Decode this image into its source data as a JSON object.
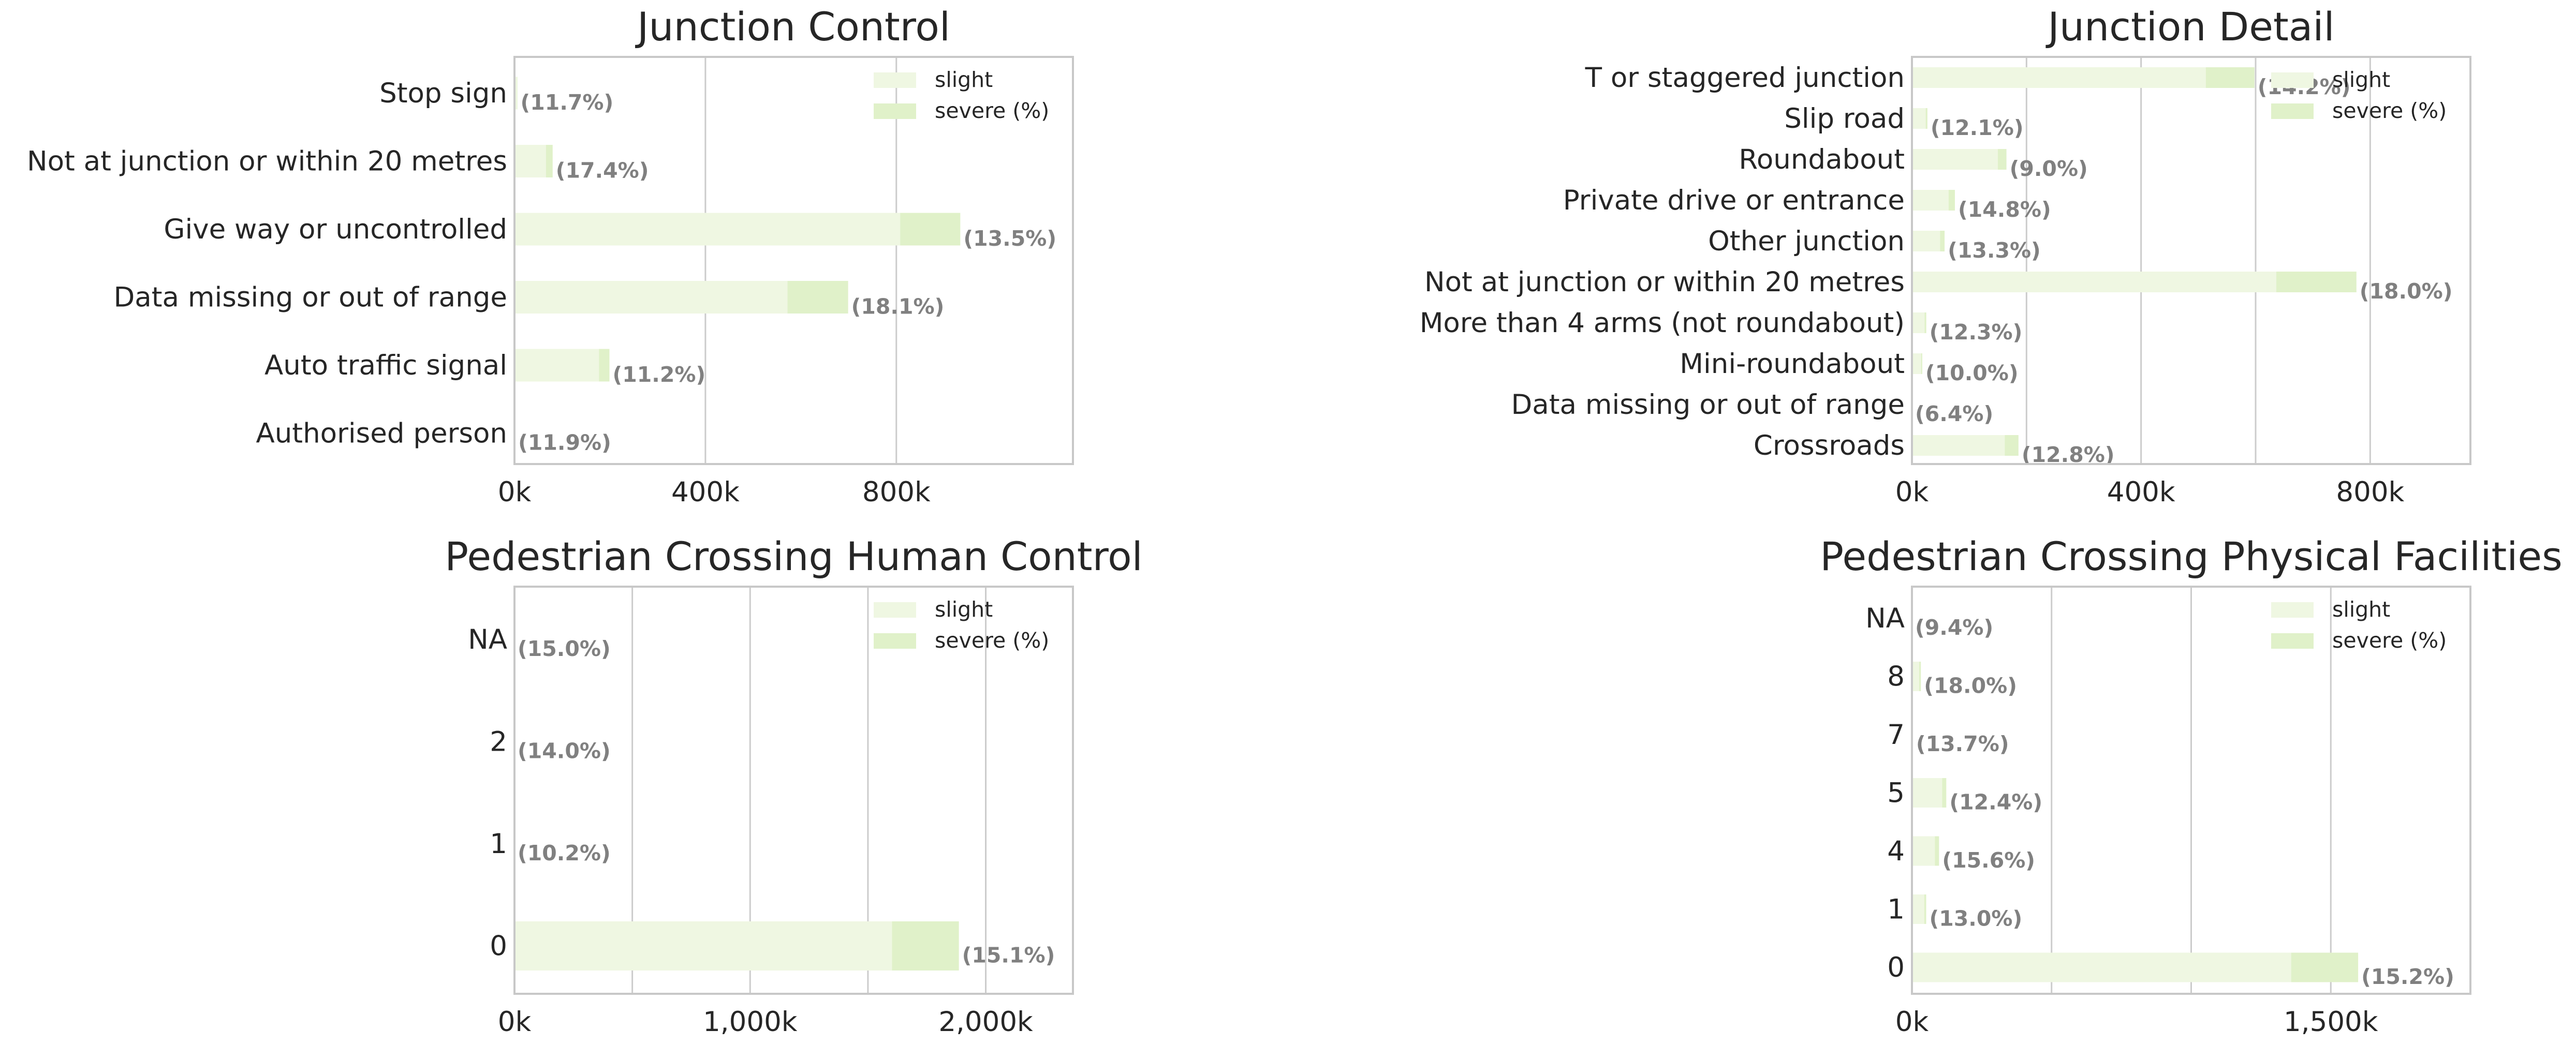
{
  "colors": {
    "slight": "#eff7e2",
    "severe": "#e0f1c9",
    "grid": "#cccccc",
    "frame": "#c8c8c8",
    "pct_text": "#808080"
  },
  "chart_data": [
    {
      "type": "bar",
      "orientation": "horizontal",
      "stacked": true,
      "title": "Junction Control",
      "categories": [
        "Stop sign",
        "Not at junction or within 20 metres",
        "Give way or uncontrolled",
        "Data missing or out of range",
        "Auto traffic signal",
        "Authorised person"
      ],
      "series": [
        {
          "name": "slight",
          "values": [
            5000,
            66000,
            808000,
            572000,
            177000,
            1000
          ]
        },
        {
          "name": "severe (%)",
          "values": [
            1000,
            14000,
            126000,
            127000,
            22000,
            200
          ]
        }
      ],
      "severe_pct_labels": [
        "(11.7%)",
        "(17.4%)",
        "(13.5%)",
        "(18.1%)",
        "(11.2%)",
        "(11.9%)"
      ],
      "xlim": [
        0,
        1170000
      ],
      "xticks": [
        0,
        400000,
        800000
      ],
      "xtick_labels": [
        "0k",
        "400k",
        "800k"
      ],
      "grid": [
        0,
        400000,
        800000
      ],
      "legend": {
        "placement": "top-right",
        "labels": [
          "slight",
          "severe (%)"
        ]
      }
    },
    {
      "type": "bar",
      "orientation": "horizontal",
      "stacked": true,
      "title": "Junction Detail",
      "categories": [
        "T or staggered junction",
        "Slip road",
        "Roundabout",
        "Private drive or entrance",
        "Other junction",
        "Not at junction or within 20 metres",
        "More than 4 arms (not roundabout)",
        "Mini-roundabout",
        "Data missing or out of range",
        "Crossroads"
      ],
      "series": [
        {
          "name": "slight",
          "values": [
            513000,
            24000,
            150000,
            64000,
            49000,
            636000,
            22000,
            16000,
            0,
            162000
          ]
        },
        {
          "name": "severe (%)",
          "values": [
            85000,
            3000,
            15000,
            11000,
            8000,
            140000,
            3000,
            2000,
            0,
            24000
          ]
        }
      ],
      "severe_pct_labels": [
        "(14.2%)",
        "(12.1%)",
        "(9.0%)",
        "(14.8%)",
        "(13.3%)",
        "(18.0%)",
        "(12.3%)",
        "(10.0%)",
        "(6.4%)",
        "(12.8%)"
      ],
      "xlim": [
        0,
        975000
      ],
      "xticks": [
        0,
        400000,
        800000
      ],
      "xtick_labels": [
        "0k",
        "400k",
        "800k"
      ],
      "grid": [
        0,
        200000,
        400000,
        600000,
        800000
      ],
      "legend": {
        "placement": "top-right",
        "labels": [
          "slight",
          "severe (%)"
        ]
      }
    },
    {
      "type": "bar",
      "orientation": "horizontal",
      "stacked": true,
      "title": "Pedestrian Crossing Human Control",
      "categories": [
        "NA",
        "2",
        "1",
        "0"
      ],
      "series": [
        {
          "name": "slight",
          "values": [
            0,
            0,
            0,
            1602000
          ]
        },
        {
          "name": "severe (%)",
          "values": [
            0,
            0,
            0,
            284000
          ]
        }
      ],
      "severe_pct_labels": [
        "(15.0%)",
        "(14.0%)",
        "(10.2%)",
        "(15.1%)"
      ],
      "xlim": [
        0,
        2370000
      ],
      "xticks": [
        0,
        1000000,
        2000000
      ],
      "xtick_labels": [
        "0k",
        "1,000k",
        "2,000k"
      ],
      "grid": [
        0,
        500000,
        1000000,
        1500000,
        2000000
      ],
      "legend": {
        "placement": "top-right",
        "labels": [
          "slight",
          "severe (%)"
        ]
      }
    },
    {
      "type": "bar",
      "orientation": "horizontal",
      "stacked": true,
      "title": "Pedestrian Crossing Physical Facilities",
      "categories": [
        "NA",
        "8",
        "7",
        "5",
        "4",
        "1",
        "0"
      ],
      "series": [
        {
          "name": "slight",
          "values": [
            0,
            26000,
            3000,
            108000,
            82000,
            44000,
            1358000
          ]
        },
        {
          "name": "severe (%)",
          "values": [
            0,
            6000,
            500,
            15000,
            15000,
            7000,
            240000
          ]
        }
      ],
      "severe_pct_labels": [
        "(9.4%)",
        "(18.0%)",
        "(13.7%)",
        "(12.4%)",
        "(15.6%)",
        "(13.0%)",
        "(15.2%)"
      ],
      "xlim": [
        0,
        2000000
      ],
      "xticks": [
        0,
        1500000
      ],
      "xtick_labels": [
        "0k",
        "1,500k"
      ],
      "grid": [
        0,
        500000,
        1000000,
        1500000,
        2000000
      ],
      "legend": {
        "placement": "top-right",
        "labels": [
          "slight",
          "severe (%)"
        ]
      }
    }
  ]
}
